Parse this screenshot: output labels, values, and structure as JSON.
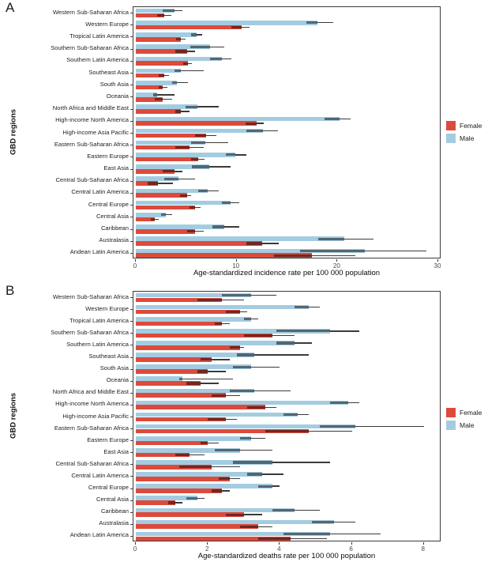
{
  "figure_title": "",
  "chart_data": [
    {
      "type": "bar",
      "orientation": "horizontal",
      "panel_label": "A",
      "xlabel": "Age-standardized incidence rate per 100 000 population",
      "ylabel": "GBD regions",
      "xlim": [
        0,
        30
      ],
      "xticks": [
        0,
        10,
        20,
        30
      ],
      "grid": false,
      "legend_position": "right",
      "categories": [
        "Western Sub-Saharan Africa",
        "Western Europe",
        "Tropical Latin America",
        "Southern Sub-Saharan Africa",
        "Southern Latin America",
        "Southeast Asia",
        "South Asia",
        "Oceania",
        "North Africa and Middle East",
        "High-income North America",
        "High-income Asia Pacific",
        "Eastern Sub-Saharan Africa",
        "Eastern Europe",
        "East Asia",
        "Central Sub-Saharan Africa",
        "Central Latin America",
        "Central Europe",
        "Central Asia",
        "Caribbean",
        "Australasia",
        "Andean Latin America"
      ],
      "series": [
        {
          "name": "Female",
          "color": "#DC4A3C",
          "values": [
            2.8,
            10.5,
            4.5,
            5.1,
            5.2,
            2.8,
            2.7,
            2.7,
            4.5,
            12.0,
            7.0,
            5.3,
            6.2,
            3.8,
            2.2,
            5.1,
            5.9,
            1.9,
            5.9,
            12.5,
            17.5
          ],
          "ci_low": [
            2.1,
            9.5,
            4.0,
            3.9,
            4.7,
            2.3,
            2.3,
            1.9,
            3.9,
            10.9,
            5.9,
            3.9,
            5.5,
            2.7,
            1.2,
            4.4,
            5.3,
            1.5,
            5.1,
            11.0,
            13.7
          ],
          "ci_high": [
            3.5,
            11.3,
            4.9,
            5.9,
            5.6,
            3.3,
            3.1,
            3.6,
            5.3,
            12.7,
            8.0,
            6.7,
            6.8,
            4.6,
            3.7,
            5.5,
            6.4,
            2.3,
            6.7,
            14.2,
            21.8
          ]
        },
        {
          "name": "Male",
          "color": "#A3CCE1",
          "values": [
            3.8,
            18.0,
            6.0,
            7.4,
            8.5,
            4.5,
            4.1,
            2.1,
            6.1,
            20.2,
            12.6,
            6.9,
            9.9,
            7.3,
            4.2,
            7.1,
            9.4,
            3.0,
            8.8,
            20.7,
            22.7
          ],
          "ci_low": [
            2.7,
            16.9,
            5.5,
            5.4,
            7.4,
            3.8,
            3.6,
            1.7,
            4.9,
            18.7,
            11.0,
            5.5,
            8.9,
            5.6,
            2.8,
            6.2,
            8.5,
            2.5,
            7.6,
            18.1,
            16.3
          ],
          "ci_high": [
            4.6,
            19.6,
            6.6,
            8.8,
            9.5,
            6.7,
            5.2,
            3.8,
            8.2,
            21.3,
            14.1,
            9.2,
            11.0,
            9.4,
            5.9,
            8.2,
            10.3,
            3.6,
            10.3,
            23.6,
            28.8
          ]
        }
      ]
    },
    {
      "type": "bar",
      "orientation": "horizontal",
      "panel_label": "B",
      "xlabel": "Age-standardized deaths rate per 100 000 population",
      "ylabel": "GBD regions",
      "xlim": [
        0,
        8.4
      ],
      "xticks": [
        0,
        2,
        4,
        6,
        8
      ],
      "grid": false,
      "legend_position": "right",
      "categories": [
        "Western Sub-Saharan Africa",
        "Western Europe",
        "Tropical Latin America",
        "Southern Sub-Saharan Africa",
        "Southern Latin America",
        "Southeast Asia",
        "South Asia",
        "Oceania",
        "North Africa and Middle East",
        "High-income North America",
        "High-income Asia Pacific",
        "Eastern Sub-Saharan Africa",
        "Eastern Europe",
        "East Asia",
        "Central Sub-Saharan Africa",
        "Central Latin America",
        "Central Europe",
        "Central Asia",
        "Caribbean",
        "Australasia",
        "Andean Latin America"
      ],
      "series": [
        {
          "name": "Female",
          "color": "#DC4A3C",
          "values": [
            2.4,
            2.9,
            2.4,
            3.8,
            2.9,
            2.1,
            2.0,
            1.8,
            2.5,
            3.6,
            2.5,
            4.8,
            2.0,
            1.5,
            2.1,
            2.6,
            2.4,
            1.1,
            3.0,
            3.4,
            4.3
          ],
          "ci_low": [
            1.7,
            2.5,
            2.2,
            3.0,
            2.6,
            1.8,
            1.7,
            1.4,
            2.1,
            3.1,
            2.0,
            3.6,
            1.8,
            1.1,
            1.2,
            2.3,
            2.1,
            0.9,
            2.5,
            2.9,
            3.4
          ],
          "ci_high": [
            3.0,
            3.1,
            2.6,
            4.4,
            3.0,
            2.6,
            2.5,
            2.3,
            2.9,
            3.9,
            2.8,
            6.0,
            2.3,
            1.9,
            2.9,
            2.9,
            2.6,
            1.3,
            3.5,
            3.8,
            5.3
          ]
        },
        {
          "name": "Male",
          "color": "#A3CCE1",
          "values": [
            3.2,
            4.8,
            3.2,
            5.4,
            4.4,
            3.3,
            3.2,
            1.3,
            3.3,
            5.9,
            4.5,
            6.1,
            3.2,
            2.9,
            3.8,
            3.5,
            3.8,
            1.7,
            4.4,
            5.5,
            5.4
          ],
          "ci_low": [
            2.4,
            4.4,
            3.0,
            3.9,
            3.9,
            2.8,
            2.7,
            1.2,
            2.6,
            5.4,
            4.1,
            5.1,
            2.9,
            2.2,
            2.7,
            3.1,
            3.4,
            1.4,
            3.8,
            4.9,
            4.1
          ],
          "ci_high": [
            3.9,
            5.1,
            3.4,
            6.2,
            4.9,
            4.8,
            4.0,
            2.7,
            4.3,
            6.2,
            4.8,
            8.0,
            3.6,
            3.8,
            5.4,
            4.1,
            4.0,
            1.9,
            5.1,
            6.1,
            6.8
          ]
        }
      ]
    }
  ]
}
